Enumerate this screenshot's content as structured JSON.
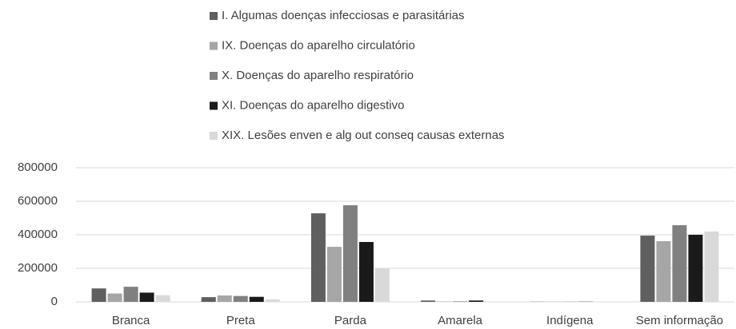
{
  "chart_data": {
    "type": "bar",
    "categories": [
      "Branca",
      "Preta",
      "Parda",
      "Amarela",
      "Indígena",
      "Sem informação"
    ],
    "series": [
      {
        "name": "I.  Algumas doenças infecciosas e parasitárias",
        "color": "#5f5f5f",
        "values": [
          80000,
          28000,
          528000,
          8000,
          1000,
          395000
        ]
      },
      {
        "name": "IX.  Doenças do aparelho circulatório",
        "color": "#a6a6a6",
        "values": [
          50000,
          38000,
          328000,
          2000,
          1000,
          362000
        ]
      },
      {
        "name": "X.  Doenças do aparelho respiratório",
        "color": "#808080",
        "values": [
          90000,
          35000,
          576000,
          3000,
          1000,
          457000
        ]
      },
      {
        "name": "XI.  Doenças do aparelho digestivo",
        "color": "#1a1a1a",
        "values": [
          55000,
          30000,
          357000,
          8000,
          1000,
          400000
        ]
      },
      {
        "name": "XIX. Lesões enven e alg out conseq causas externas",
        "color": "#d9d9d9",
        "values": [
          40000,
          15000,
          200000,
          1000,
          500,
          420000
        ]
      }
    ],
    "ylim": [
      0,
      800000
    ],
    "yticks": [
      0,
      200000,
      400000,
      600000,
      800000
    ],
    "grid": true
  }
}
